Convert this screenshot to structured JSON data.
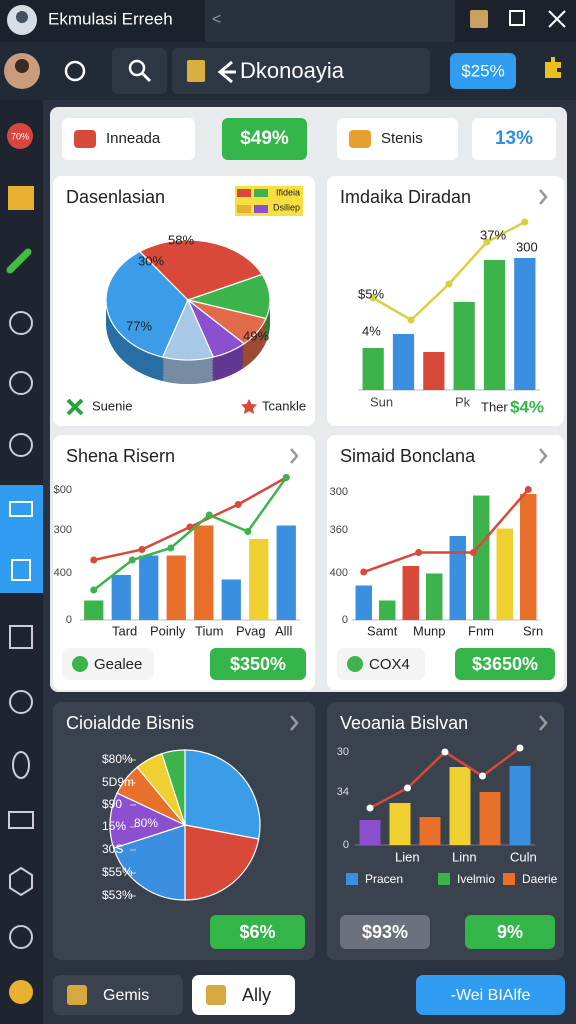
{
  "window": {
    "title": "Ekmulasi Erreeh"
  },
  "toolbar": {
    "title": "Dkonoayia",
    "badge": "$25%"
  },
  "sidebar": {
    "badge": "70%"
  },
  "stats": [
    "Inneada",
    "$49%",
    "Stenis",
    "13%"
  ],
  "panels": [
    {
      "title": "Dasenlasian",
      "type": "pie",
      "pie": {
        "values": [
          35,
          28,
          12,
          8,
          7,
          10
        ],
        "colors": [
          "#3b9de8",
          "#d9493a",
          "#3cb44b",
          "#e06a4a",
          "#8b4fd0",
          "#a8c8e8"
        ]
      },
      "labels": [
        "30%",
        "58%",
        "77%",
        "49%"
      ],
      "key": [
        "Ifideia",
        "Dsiliep"
      ],
      "legend": [
        "Suenie",
        "Tcankle"
      ]
    },
    {
      "title": "Imdaika Diradan",
      "type": "bar",
      "ylim": [
        0,
        100
      ],
      "bars": {
        "values": [
          21,
          28,
          19,
          44,
          65,
          66
        ],
        "colors": [
          "#3cb44b",
          "#3b8fe0",
          "#d9493a",
          "#3cb44b",
          "#3cb44b",
          "#3b8fe0"
        ]
      },
      "lines": [
        {
          "color": "#d8d040",
          "values": [
            46,
            35,
            53,
            74,
            84
          ]
        }
      ],
      "labels": [
        "37%",
        "300",
        "$5%",
        "4%",
        "Sun",
        "Pk",
        "Ther",
        "$4%"
      ]
    },
    {
      "title": "Shena Risern",
      "type": "bar",
      "ylim": [
        0,
        100
      ],
      "bars": {
        "values": [
          13,
          30,
          43,
          43,
          63,
          27,
          54,
          63
        ],
        "colors": [
          "#3cb44b",
          "#3b8fe0",
          "#3b8fe0",
          "#e8702a",
          "#e8702a",
          "#3b8fe0",
          "#f0d030",
          "#3b8fe0"
        ]
      },
      "lines": [
        {
          "color": "#d9493a",
          "values": [
            40,
            47,
            62,
            77,
            95
          ]
        },
        {
          "color": "#3cb44b",
          "values": [
            20,
            40,
            48,
            70,
            59,
            95
          ]
        }
      ],
      "labels": [
        "$00",
        "300",
        "400",
        "0",
        "Tard",
        "Poinly",
        "Tium",
        "Pvag",
        "Alll"
      ],
      "buttons": [
        "Gealee",
        "$350%"
      ]
    },
    {
      "title": "Simaid Bonclana",
      "type": "bar",
      "ylim": [
        0,
        100
      ],
      "bars": {
        "values": [
          23,
          13,
          36,
          31,
          56,
          83,
          61,
          84
        ],
        "colors": [
          "#3b8fe0",
          "#3cb44b",
          "#d9493a",
          "#3cb44b",
          "#3b8fe0",
          "#3cb44b",
          "#f0d030",
          "#e8702a"
        ]
      },
      "lines": [
        {
          "color": "#d9493a",
          "values": [
            32,
            45,
            45,
            87
          ]
        }
      ],
      "labels": [
        "300",
        "360",
        "400",
        "0",
        "Samt",
        "Munp",
        "Fnm",
        "Srn"
      ],
      "buttons": [
        "COX4",
        "$3650%"
      ]
    },
    {
      "title": "Cioialdde Bisnis",
      "type": "pie",
      "pie": {
        "values": [
          28,
          22,
          20,
          12,
          7,
          6,
          5
        ],
        "colors": [
          "#3b9de8",
          "#d9493a",
          "#3b8fe0",
          "#8b4fd0",
          "#e8702a",
          "#f0d030",
          "#3cb44b"
        ]
      },
      "labels": [
        "$80%",
        "5D9m",
        "$90",
        "15%",
        "80%",
        "30S",
        "$55%",
        "$53%"
      ],
      "buttons": [
        "$6%"
      ]
    },
    {
      "title": "Veoania Bislvan",
      "type": "bar",
      "ylim": [
        0,
        100
      ],
      "bars": {
        "values": [
          25,
          42,
          28,
          78,
          53,
          79
        ],
        "colors": [
          "#8b4fd0",
          "#f0d030",
          "#e8702a",
          "#f0d030",
          "#e8702a",
          "#3b8fe0"
        ]
      },
      "lines": [
        {
          "color": "#d9493a",
          "values": [
            37,
            57,
            93,
            69,
            97
          ]
        }
      ],
      "labels": [
        "30",
        "34",
        "0",
        "Lien",
        "Linn",
        "Culn"
      ],
      "legend": [
        "Pracen",
        "Ivelmio",
        "Daerie"
      ],
      "buttons": [
        "$93%",
        "9%"
      ]
    }
  ],
  "bottom": [
    "Gemis",
    "Ally",
    "-Wei BIAlfe"
  ]
}
